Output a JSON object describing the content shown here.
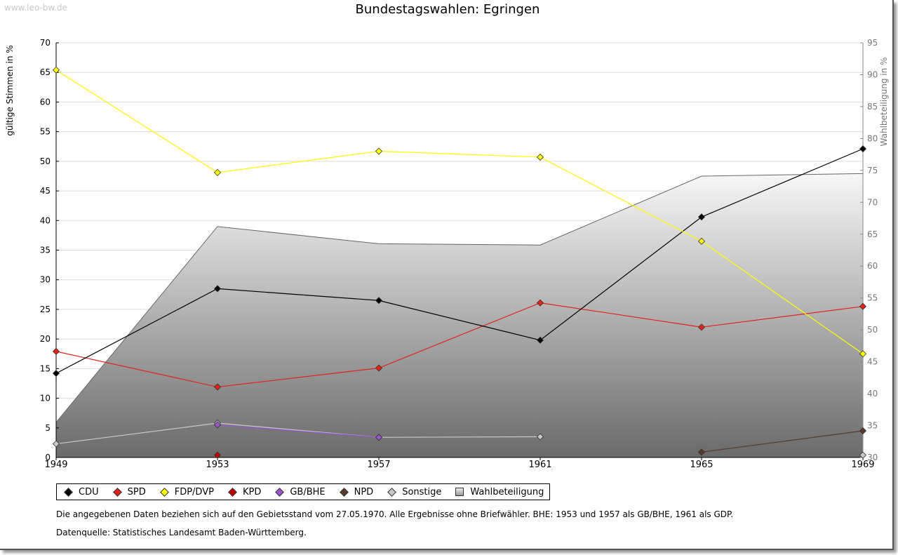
{
  "watermark": "www.leo-bw.de",
  "chart_data": {
    "type": "line",
    "title": "Bundestagswahlen: Egringen",
    "ylabel": "gültige Stimmen in %",
    "y2label": "Wahlbeteiligung in %",
    "x": [
      1949,
      1953,
      1957,
      1961,
      1965,
      1969
    ],
    "ylim": [
      0,
      70
    ],
    "y2lim": [
      30,
      95
    ],
    "yticks": [
      0,
      5,
      10,
      15,
      20,
      25,
      30,
      35,
      40,
      45,
      50,
      55,
      60,
      65,
      70
    ],
    "y2ticks": [
      30,
      35,
      40,
      45,
      50,
      55,
      60,
      65,
      70,
      75,
      80,
      85,
      90,
      95
    ],
    "grid": true,
    "legend_position": "bottom",
    "series": [
      {
        "name": "CDU",
        "color": "#000000",
        "values": [
          14.2,
          28.5,
          26.5,
          19.8,
          40.6,
          52.1
        ]
      },
      {
        "name": "SPD",
        "color": "#e32219",
        "values": [
          17.9,
          11.9,
          15.1,
          26.1,
          22.0,
          25.5
        ]
      },
      {
        "name": "FDP/DVP",
        "color": "#ffff00",
        "values": [
          65.4,
          48.1,
          51.7,
          50.7,
          36.5,
          17.5
        ]
      },
      {
        "name": "KPD",
        "color": "#c00000",
        "values": [
          null,
          0.4,
          null,
          null,
          null,
          null
        ]
      },
      {
        "name": "GB/BHE",
        "color": "#9955cc",
        "values": [
          null,
          5.5,
          3.4,
          null,
          null,
          null
        ]
      },
      {
        "name": "NPD",
        "color": "#5a3a28",
        "values": [
          null,
          null,
          null,
          null,
          0.9,
          4.5
        ]
      },
      {
        "name": "Sonstige",
        "color": "#c8c8c8",
        "values": [
          2.3,
          5.8,
          3.4,
          3.5,
          null,
          0.4
        ]
      }
    ],
    "area": {
      "name": "Wahlbeteiligung",
      "axis": "right",
      "values": [
        35.5,
        66.2,
        63.5,
        63.3,
        74.1,
        74.5
      ]
    }
  },
  "footnotes": {
    "line1": "Die angegebenen Daten beziehen sich auf den Gebietsstand vom 27.05.1970. Alle Ergebnisse ohne Briefwähler. BHE: 1953 und 1957 als GB/BHE, 1961 als GDP.",
    "line2": "Datenquelle: Statistisches Landesamt Baden-Württemberg."
  }
}
